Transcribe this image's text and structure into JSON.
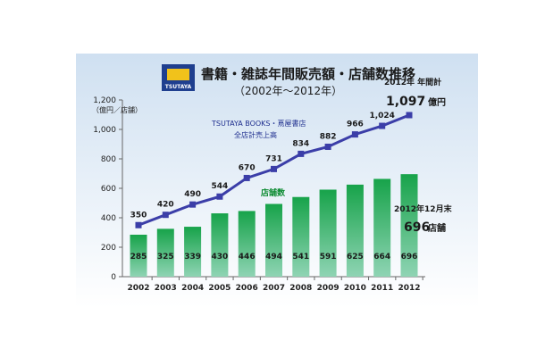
{
  "header": {
    "logo_text": "TSUTAYA",
    "title": "書籍・雑誌年間販売額・店舗数推移",
    "subtitle": "（2002年～2012年）"
  },
  "chart_data": {
    "type": "bar",
    "categories": [
      "2002",
      "2003",
      "2004",
      "2005",
      "2006",
      "2007",
      "2008",
      "2009",
      "2010",
      "2011",
      "2012"
    ],
    "series": [
      {
        "name": "店舗数",
        "type": "bar",
        "values": [
          285,
          325,
          339,
          430,
          446,
          494,
          541,
          591,
          625,
          664,
          696
        ]
      },
      {
        "name": "全店計売上高",
        "type": "line",
        "values": [
          350,
          420,
          490,
          544,
          670,
          731,
          834,
          882,
          966,
          1024,
          1097
        ]
      }
    ],
    "line_value_labels": [
      "350",
      "420",
      "490",
      "544",
      "670",
      "731",
      "834",
      "882",
      "966",
      "1,024",
      ""
    ],
    "line_legend_group": "TSUTAYA BOOKS・蔦屋書店",
    "ylabel": "（億円／店舗）",
    "ylim": [
      0,
      1200
    ],
    "yticks": [
      0,
      200,
      400,
      600,
      800,
      "1,000",
      "1,200"
    ],
    "grid": false,
    "annotations": {
      "sales_2012_label": "2012年 年間計",
      "sales_2012_value": "1,097",
      "sales_2012_unit": "億円",
      "stores_2012_label": "2012年12月末",
      "stores_2012_value": "696",
      "stores_2012_unit": "店舗"
    },
    "colors": {
      "bar_top": "#17a34a",
      "bar_bottom": "#8fd4b4",
      "line": "#3b3ea8",
      "marker": "#3b3ea8",
      "background_top": "#cfe0f1",
      "background_bottom": "#ffffff"
    }
  }
}
